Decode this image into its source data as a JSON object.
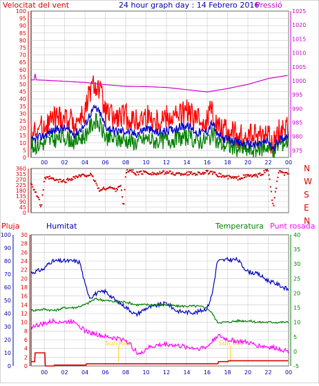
{
  "header": {
    "left_label": "Velocitat del vent",
    "title": "24 hour graph day : 14 Febrero 2016",
    "right_label": "Pressió"
  },
  "direction_labels": [
    "N",
    "W",
    "S",
    "E",
    "N"
  ],
  "bottom_header": {
    "rain_label": "Pluja",
    "humidity_label": "Humitat",
    "temperature_label": "Temperatura",
    "dewpoint_label": "Punt rosada"
  },
  "annotations": {
    "sunrise": "Sun Rise",
    "sunset": "Sun Set"
  },
  "colors": {
    "wind_gust": "#ff0000",
    "wind_avg": "#0000cc",
    "wind_speed": "#008000",
    "pressure": "#cc00cc",
    "direction": "#cc0000",
    "humidity": "#0000bb",
    "temperature": "#008000",
    "dewpoint": "#ff00ff",
    "rain": "#dd0000",
    "sun_marker": "#ffcc00",
    "grid": "#c8c8c8"
  },
  "chart_data": [
    {
      "type": "line",
      "name": "wind-pressure",
      "title": "24 hour graph day : 14 Febrero 2016",
      "x_ticks": [
        "00",
        "02",
        "04",
        "06",
        "08",
        "10",
        "12",
        "14",
        "16",
        "18",
        "20",
        "22",
        "00"
      ],
      "x_hours": [
        0,
        24
      ],
      "y_left_label": "Velocitat del vent",
      "y_left_ticks": [
        0,
        5,
        10,
        15,
        20,
        25,
        30,
        35,
        40,
        45,
        50,
        55,
        60,
        65,
        70,
        75,
        80,
        85,
        90,
        95,
        100
      ],
      "ylim_left": [
        0,
        100
      ],
      "y_right_label": "Pressió",
      "y_right_ticks": [
        975,
        980,
        985,
        990,
        995,
        1000,
        1005,
        1010,
        1015,
        1020,
        1025
      ],
      "ylim_right": [
        972.5,
        1025
      ],
      "series": [
        {
          "name": "gust",
          "axis": "left",
          "x": [
            -1.3,
            0,
            1,
            2,
            3,
            4,
            4.5,
            5,
            5.5,
            6,
            7,
            8,
            9,
            10,
            11,
            12,
            13,
            14,
            15,
            16,
            16.5,
            17,
            18,
            19,
            20,
            21,
            22,
            22.5,
            23,
            24
          ],
          "y": [
            16,
            22,
            27,
            28,
            24,
            30,
            45,
            50,
            45,
            30,
            26,
            28,
            24,
            28,
            25,
            28,
            28,
            31,
            25,
            26,
            35,
            22,
            18,
            15,
            14,
            14,
            16,
            8,
            18,
            21
          ]
        },
        {
          "name": "average",
          "axis": "left",
          "x": [
            -1.3,
            0,
            1,
            2,
            3,
            4,
            4.5,
            5,
            5.5,
            6,
            7,
            8,
            9,
            10,
            11,
            12,
            13,
            14,
            15,
            16,
            16.5,
            17,
            18,
            19,
            20,
            21,
            22,
            22.5,
            23,
            24
          ],
          "y": [
            11,
            15,
            19,
            20,
            16,
            22,
            30,
            34,
            30,
            21,
            18,
            18,
            16,
            20,
            17,
            18,
            20,
            22,
            17,
            18,
            24,
            15,
            12,
            10,
            9,
            9,
            11,
            5,
            12,
            15
          ]
        },
        {
          "name": "speed",
          "axis": "left",
          "x": [
            -1.3,
            0,
            1,
            2,
            3,
            4,
            4.5,
            5,
            5.5,
            6,
            7,
            8,
            9,
            10,
            11,
            12,
            13,
            14,
            15,
            16,
            16.5,
            17,
            18,
            19,
            20,
            21,
            22,
            22.5,
            23,
            24
          ],
          "y": [
            7,
            10,
            12,
            14,
            11,
            15,
            21,
            25,
            21,
            14,
            12,
            12,
            10,
            13,
            11,
            12,
            13,
            14,
            11,
            12,
            16,
            10,
            8,
            6,
            5,
            5,
            8,
            3,
            9,
            11
          ]
        },
        {
          "name": "pressure",
          "axis": "right",
          "x": [
            -1.3,
            -1.0,
            -0.9,
            -0.8,
            0,
            2,
            4,
            6,
            8,
            10,
            12,
            14,
            16,
            18,
            20,
            22,
            24
          ],
          "y": [
            1000.3,
            1000.3,
            1002.5,
            1000.3,
            1000.2,
            999.8,
            999.4,
            998.6,
            998.0,
            997.9,
            997.6,
            996.8,
            996.0,
            997.2,
            998.7,
            1000.8,
            1002.0
          ]
        }
      ]
    },
    {
      "type": "scatter",
      "name": "wind-direction",
      "x_ticks": [
        "00",
        "02",
        "04",
        "06",
        "08",
        "10",
        "12",
        "14",
        "16",
        "18",
        "20",
        "22",
        "00"
      ],
      "y_ticks": [
        0,
        45,
        90,
        135,
        180,
        225,
        270,
        315,
        360
      ],
      "ylim": [
        0,
        360
      ],
      "x": [
        -1.3,
        -0.6,
        -0.3,
        0,
        0.5,
        1,
        2,
        3,
        4,
        4.5,
        5,
        5.2,
        5.5,
        6,
        6.5,
        7,
        7.5,
        7.8,
        8,
        8.5,
        9,
        10,
        11,
        12,
        13,
        14,
        15,
        16,
        17,
        18,
        19,
        20,
        21,
        22,
        22.5,
        23,
        24
      ],
      "y": [
        245,
        120,
        40,
        270,
        285,
        265,
        255,
        290,
        305,
        310,
        260,
        210,
        180,
        200,
        205,
        185,
        230,
        30,
        330,
        345,
        320,
        330,
        315,
        330,
        315,
        320,
        320,
        330,
        310,
        290,
        280,
        300,
        300,
        350,
        40,
        330,
        310
      ]
    },
    {
      "type": "line",
      "name": "humidity-temperature",
      "x_ticks": [
        "00",
        "02",
        "04",
        "06",
        "08",
        "10",
        "12",
        "14",
        "16",
        "18",
        "20",
        "22",
        "00"
      ],
      "y_rain_ticks": [
        0,
        2,
        4,
        6,
        8,
        10,
        12,
        14,
        16,
        18,
        20,
        22,
        24,
        26,
        28,
        30
      ],
      "ylim_rain": [
        0,
        30
      ],
      "y_humidity_ticks": [
        0,
        10,
        20,
        30,
        40,
        50,
        60,
        70,
        80,
        90,
        100
      ],
      "ylim_humidity": [
        0,
        100
      ],
      "y_temperature_ticks": [
        -5,
        0,
        5,
        10,
        15,
        20,
        25,
        30,
        35,
        40
      ],
      "ylim_temperature": [
        -5,
        40
      ],
      "series": [
        {
          "name": "humidity",
          "axis": "humidity",
          "x": [
            -1.3,
            0,
            0.5,
            1,
            2,
            3,
            3.5,
            4,
            4.5,
            5,
            6,
            7,
            8,
            9,
            10,
            11,
            12,
            13,
            14,
            15,
            16,
            16.5,
            17,
            18,
            19,
            19.5,
            20,
            21,
            22,
            23,
            24
          ],
          "y": [
            71,
            74,
            79,
            80,
            80,
            80,
            79,
            62,
            52,
            55,
            57,
            50,
            45,
            39,
            44,
            46,
            48,
            42,
            41,
            41,
            44,
            55,
            80,
            81,
            81,
            76,
            72,
            70,
            65,
            62,
            58
          ]
        },
        {
          "name": "temperature",
          "axis": "temperature",
          "x": [
            -1.3,
            0,
            1,
            2,
            3,
            4,
            5,
            6,
            7,
            8,
            9,
            10,
            11,
            12,
            13,
            14,
            15,
            16,
            16.5,
            17,
            18,
            19,
            20,
            21,
            22,
            23,
            24
          ],
          "y": [
            14,
            14.5,
            14,
            15,
            15,
            16,
            18,
            17.5,
            17,
            17,
            16,
            16,
            16,
            16,
            15.5,
            15.5,
            15.5,
            15,
            13,
            10,
            10,
            10.5,
            10.5,
            10,
            10,
            10,
            10
          ]
        },
        {
          "name": "dewpoint",
          "axis": "temperature",
          "x": [
            -1.3,
            0,
            1,
            2,
            3,
            4,
            5,
            6,
            7,
            8,
            9,
            9.5,
            10,
            11,
            12,
            13,
            14,
            15,
            16,
            17,
            18,
            19,
            20,
            21,
            22,
            23,
            24
          ],
          "y": [
            8.5,
            9.5,
            10.5,
            10,
            10.5,
            7,
            6,
            5,
            4.5,
            4,
            0,
            -1,
            1,
            2,
            2.5,
            2,
            1.5,
            1,
            1.5,
            5.5,
            4,
            3.5,
            3,
            2,
            1.5,
            1,
            0
          ]
        },
        {
          "name": "rain",
          "axis": "rain",
          "x": [
            -1.3,
            -1.0,
            -0.9,
            0,
            0.1,
            1,
            4,
            4.1,
            17,
            17.1,
            18,
            18.1,
            24
          ],
          "y": [
            1,
            1,
            3,
            3,
            0,
            0.2,
            0.2,
            0.5,
            0.5,
            1,
            1,
            1.2,
            1.2
          ]
        }
      ],
      "sunrise_hour": 7.3,
      "sunset_hour": 18.3
    }
  ]
}
